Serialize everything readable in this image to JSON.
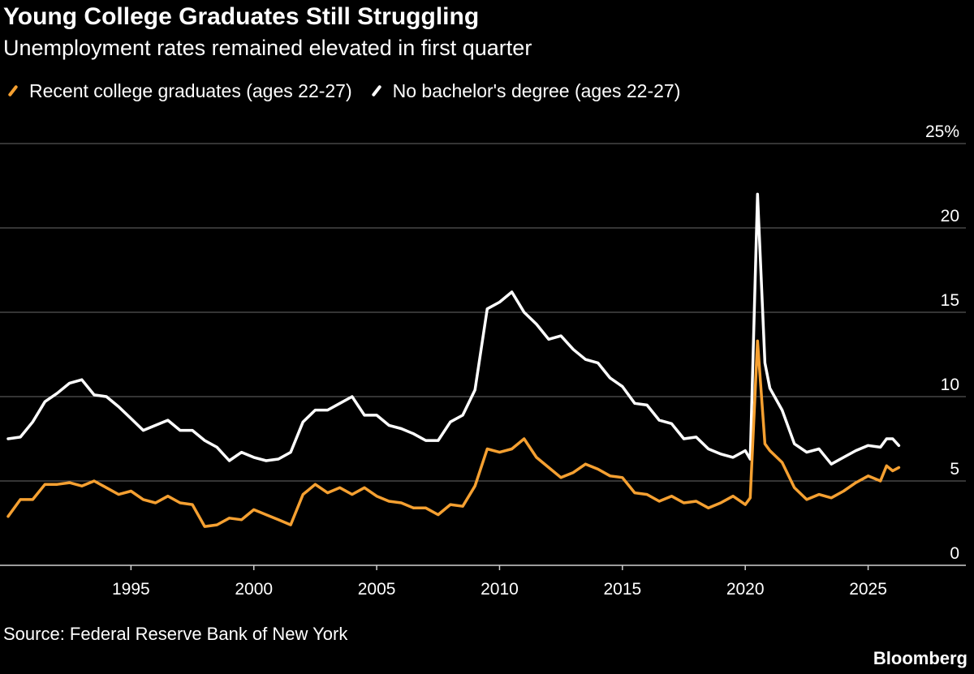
{
  "chart_data": {
    "type": "line",
    "title": "Young College Graduates Still Struggling",
    "subtitle": "Unemployment rates remained elevated in first quarter",
    "source": "Source: Federal Reserve Bank of New York",
    "brand": "Bloomberg",
    "ylim": [
      0,
      25
    ],
    "xlim": [
      1990.0,
      2026.6
    ],
    "grid": true,
    "legend": "top-left",
    "y_ticks": [
      {
        "value": 0,
        "label": "0"
      },
      {
        "value": 5,
        "label": "5"
      },
      {
        "value": 10,
        "label": "10"
      },
      {
        "value": 15,
        "label": "15"
      },
      {
        "value": 20,
        "label": "20"
      },
      {
        "value": 25,
        "label": "25%"
      }
    ],
    "x_ticks": [
      {
        "value": 1995,
        "label": "1995"
      },
      {
        "value": 2000,
        "label": "2000"
      },
      {
        "value": 2005,
        "label": "2005"
      },
      {
        "value": 2010,
        "label": "2010"
      },
      {
        "value": 2015,
        "label": "2015"
      },
      {
        "value": 2020,
        "label": "2020"
      },
      {
        "value": 2025,
        "label": "2025"
      }
    ],
    "series": [
      {
        "name": "Recent college graduates (ages 22-27)",
        "color": "#f5a031",
        "points": [
          [
            1990.0,
            2.9
          ],
          [
            1990.5,
            3.9
          ],
          [
            1991.0,
            3.9
          ],
          [
            1991.5,
            4.8
          ],
          [
            1992.0,
            4.8
          ],
          [
            1992.5,
            4.9
          ],
          [
            1993.0,
            4.7
          ],
          [
            1993.5,
            5.0
          ],
          [
            1994.0,
            4.6
          ],
          [
            1994.5,
            4.2
          ],
          [
            1995.0,
            4.4
          ],
          [
            1995.5,
            3.9
          ],
          [
            1996.0,
            3.7
          ],
          [
            1996.5,
            4.1
          ],
          [
            1997.0,
            3.7
          ],
          [
            1997.5,
            3.6
          ],
          [
            1998.0,
            2.3
          ],
          [
            1998.5,
            2.4
          ],
          [
            1999.0,
            2.8
          ],
          [
            1999.5,
            2.7
          ],
          [
            2000.0,
            3.3
          ],
          [
            2000.5,
            3.0
          ],
          [
            2001.0,
            2.7
          ],
          [
            2001.5,
            2.4
          ],
          [
            2002.0,
            4.2
          ],
          [
            2002.5,
            4.8
          ],
          [
            2003.0,
            4.3
          ],
          [
            2003.5,
            4.6
          ],
          [
            2004.0,
            4.2
          ],
          [
            2004.5,
            4.6
          ],
          [
            2005.0,
            4.1
          ],
          [
            2005.5,
            3.8
          ],
          [
            2006.0,
            3.7
          ],
          [
            2006.5,
            3.4
          ],
          [
            2007.0,
            3.4
          ],
          [
            2007.5,
            3.0
          ],
          [
            2008.0,
            3.6
          ],
          [
            2008.5,
            3.5
          ],
          [
            2009.0,
            4.7
          ],
          [
            2009.5,
            6.9
          ],
          [
            2010.0,
            6.7
          ],
          [
            2010.5,
            6.9
          ],
          [
            2011.0,
            7.5
          ],
          [
            2011.5,
            6.4
          ],
          [
            2012.0,
            5.8
          ],
          [
            2012.5,
            5.2
          ],
          [
            2013.0,
            5.5
          ],
          [
            2013.5,
            6.0
          ],
          [
            2014.0,
            5.7
          ],
          [
            2014.5,
            5.3
          ],
          [
            2015.0,
            5.2
          ],
          [
            2015.5,
            4.3
          ],
          [
            2016.0,
            4.2
          ],
          [
            2016.5,
            3.8
          ],
          [
            2017.0,
            4.1
          ],
          [
            2017.5,
            3.7
          ],
          [
            2018.0,
            3.8
          ],
          [
            2018.5,
            3.4
          ],
          [
            2019.0,
            3.7
          ],
          [
            2019.5,
            4.1
          ],
          [
            2020.0,
            3.6
          ],
          [
            2020.2,
            4.0
          ],
          [
            2020.5,
            13.3
          ],
          [
            2020.8,
            7.2
          ],
          [
            2021.0,
            6.8
          ],
          [
            2021.5,
            6.1
          ],
          [
            2022.0,
            4.6
          ],
          [
            2022.5,
            3.9
          ],
          [
            2023.0,
            4.2
          ],
          [
            2023.5,
            4.0
          ],
          [
            2024.0,
            4.4
          ],
          [
            2024.5,
            4.9
          ],
          [
            2025.0,
            5.3
          ],
          [
            2025.5,
            5.0
          ],
          [
            2025.75,
            5.9
          ],
          [
            2026.0,
            5.6
          ],
          [
            2026.25,
            5.8
          ]
        ]
      },
      {
        "name": "No bachelor's degree (ages 22-27)",
        "color": "#ffffff",
        "points": [
          [
            1990.0,
            7.5
          ],
          [
            1990.5,
            7.6
          ],
          [
            1991.0,
            8.5
          ],
          [
            1991.5,
            9.7
          ],
          [
            1992.0,
            10.2
          ],
          [
            1992.5,
            10.8
          ],
          [
            1993.0,
            11.0
          ],
          [
            1993.5,
            10.1
          ],
          [
            1994.0,
            10.0
          ],
          [
            1994.5,
            9.4
          ],
          [
            1995.0,
            8.7
          ],
          [
            1995.5,
            8.0
          ],
          [
            1996.0,
            8.3
          ],
          [
            1996.5,
            8.6
          ],
          [
            1997.0,
            8.0
          ],
          [
            1997.5,
            8.0
          ],
          [
            1998.0,
            7.4
          ],
          [
            1998.5,
            7.0
          ],
          [
            1999.0,
            6.2
          ],
          [
            1999.5,
            6.7
          ],
          [
            2000.0,
            6.4
          ],
          [
            2000.5,
            6.2
          ],
          [
            2001.0,
            6.3
          ],
          [
            2001.5,
            6.7
          ],
          [
            2002.0,
            8.5
          ],
          [
            2002.5,
            9.2
          ],
          [
            2003.0,
            9.2
          ],
          [
            2003.5,
            9.6
          ],
          [
            2004.0,
            10.0
          ],
          [
            2004.5,
            8.9
          ],
          [
            2005.0,
            8.9
          ],
          [
            2005.5,
            8.3
          ],
          [
            2006.0,
            8.1
          ],
          [
            2006.5,
            7.8
          ],
          [
            2007.0,
            7.4
          ],
          [
            2007.5,
            7.4
          ],
          [
            2008.0,
            8.5
          ],
          [
            2008.5,
            8.9
          ],
          [
            2009.0,
            10.4
          ],
          [
            2009.5,
            15.2
          ],
          [
            2010.0,
            15.6
          ],
          [
            2010.5,
            16.2
          ],
          [
            2011.0,
            15.0
          ],
          [
            2011.5,
            14.3
          ],
          [
            2012.0,
            13.4
          ],
          [
            2012.5,
            13.6
          ],
          [
            2013.0,
            12.8
          ],
          [
            2013.5,
            12.2
          ],
          [
            2014.0,
            12.0
          ],
          [
            2014.5,
            11.1
          ],
          [
            2015.0,
            10.6
          ],
          [
            2015.5,
            9.6
          ],
          [
            2016.0,
            9.5
          ],
          [
            2016.5,
            8.6
          ],
          [
            2017.0,
            8.4
          ],
          [
            2017.5,
            7.5
          ],
          [
            2018.0,
            7.6
          ],
          [
            2018.5,
            6.9
          ],
          [
            2019.0,
            6.6
          ],
          [
            2019.5,
            6.4
          ],
          [
            2020.0,
            6.8
          ],
          [
            2020.2,
            6.3
          ],
          [
            2020.5,
            22.0
          ],
          [
            2020.8,
            12.0
          ],
          [
            2021.0,
            10.5
          ],
          [
            2021.5,
            9.2
          ],
          [
            2022.0,
            7.2
          ],
          [
            2022.5,
            6.7
          ],
          [
            2023.0,
            6.9
          ],
          [
            2023.5,
            6.0
          ],
          [
            2024.0,
            6.4
          ],
          [
            2024.5,
            6.8
          ],
          [
            2025.0,
            7.1
          ],
          [
            2025.5,
            7.0
          ],
          [
            2025.75,
            7.5
          ],
          [
            2026.0,
            7.5
          ],
          [
            2026.25,
            7.1
          ]
        ]
      }
    ]
  }
}
